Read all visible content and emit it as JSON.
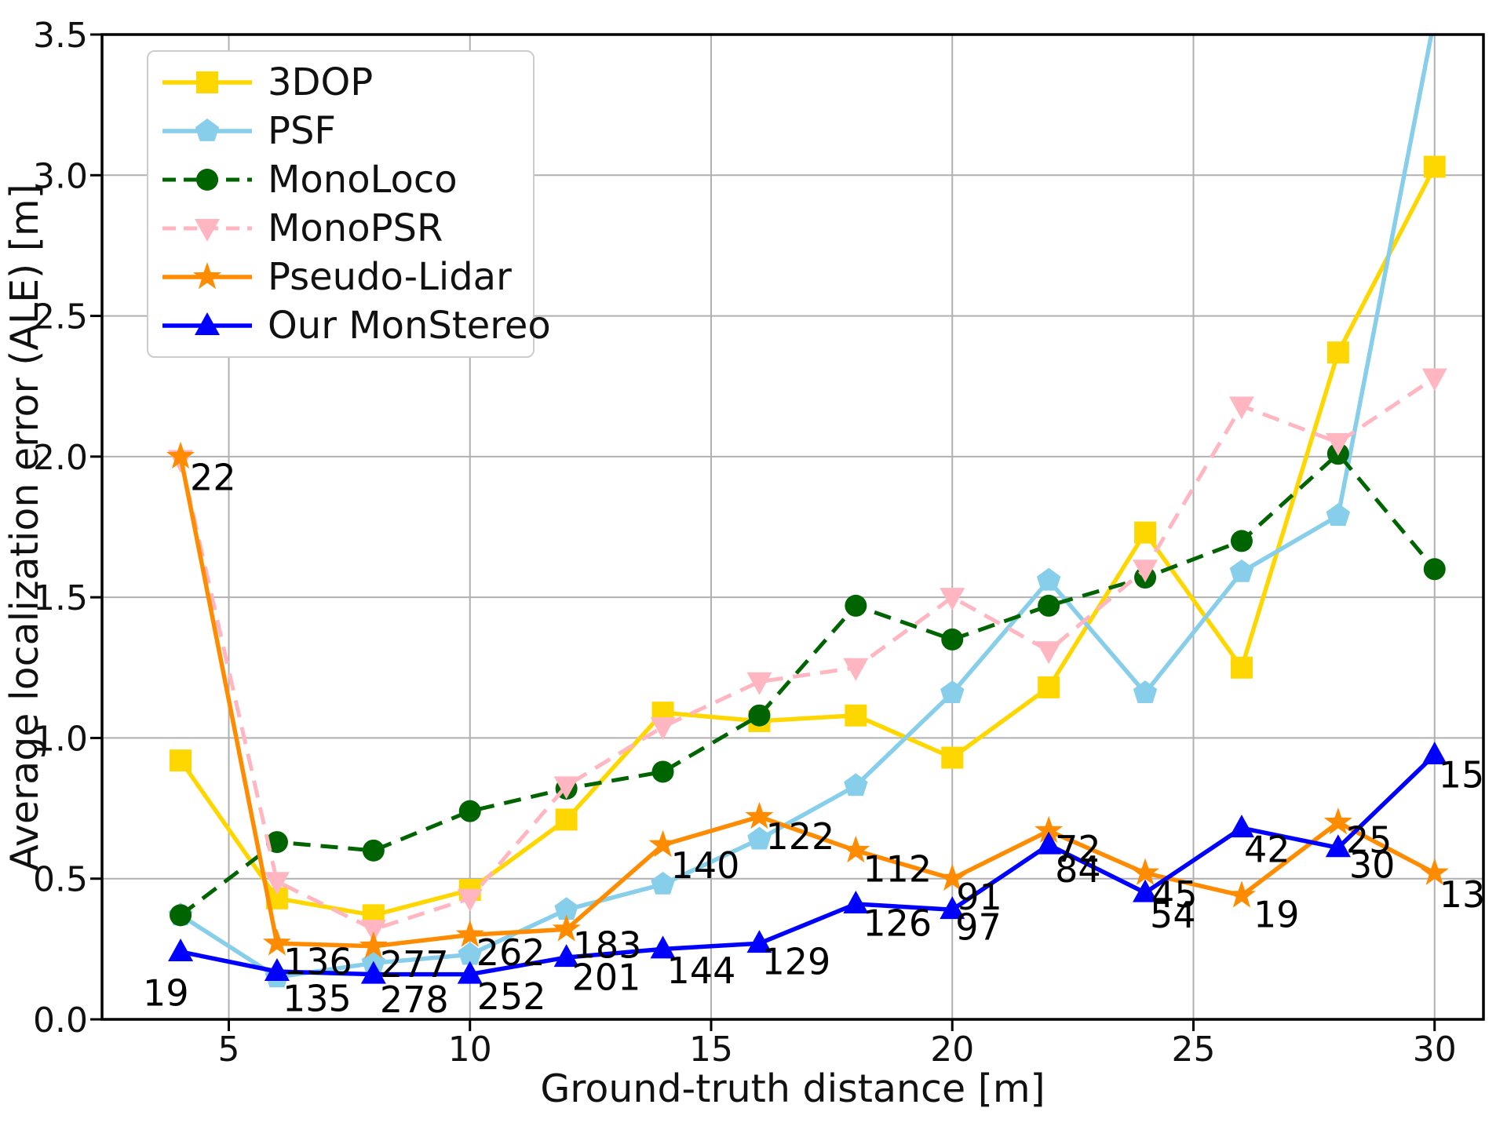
{
  "figure": {
    "xlabel": "Ground-truth distance [m]",
    "ylabel": "Average localization error (ALE) [m]"
  },
  "chart_data": {
    "type": "line",
    "title": "",
    "xlabel": "Ground-truth distance [m]",
    "ylabel": "Average localization error (ALE) [m]",
    "xlim": [
      2.35,
      31.05
    ],
    "ylim": [
      0,
      3.5
    ],
    "xticks": [
      5,
      10,
      15,
      20,
      25,
      30
    ],
    "yticks": [
      "0.0",
      "0.5",
      "1.0",
      "1.5",
      "2.0",
      "2.5",
      "3.0",
      "3.5"
    ],
    "grid": true,
    "legend_position": "upper left",
    "x": [
      4,
      6,
      8,
      10,
      12,
      14,
      16,
      18,
      20,
      22,
      24,
      26,
      28,
      30
    ],
    "series": [
      {
        "name": "3DOP",
        "color": "#FFD700",
        "marker": "square",
        "dash": "solid",
        "values": [
          0.92,
          0.43,
          0.37,
          0.46,
          0.71,
          1.09,
          1.06,
          1.08,
          0.93,
          1.18,
          1.73,
          1.25,
          2.37,
          3.03
        ]
      },
      {
        "name": "PSF",
        "color": "#87CEEB",
        "marker": "pentagon",
        "dash": "solid",
        "values": [
          0.37,
          0.15,
          0.2,
          0.23,
          0.39,
          0.48,
          0.64,
          0.83,
          1.16,
          1.56,
          1.16,
          1.59,
          1.79,
          3.56
        ],
        "note": "last point rises above the 3.5 axis limit and is clipped"
      },
      {
        "name": "MonoLoco",
        "color": "#006400",
        "marker": "circle",
        "dash": "dashed",
        "values": [
          0.37,
          0.63,
          0.6,
          0.74,
          0.82,
          0.88,
          1.08,
          1.47,
          1.35,
          1.47,
          1.57,
          1.7,
          2.01,
          1.6
        ]
      },
      {
        "name": "MonoPSR",
        "color": "#FFB6C1",
        "marker": "triangle-down",
        "dash": "dashed",
        "values": [
          1.99,
          0.49,
          0.32,
          0.43,
          0.83,
          1.04,
          1.2,
          1.25,
          1.5,
          1.31,
          1.6,
          2.18,
          2.05,
          2.28
        ]
      },
      {
        "name": "Pseudo-Lidar",
        "color": "#FF8C00",
        "marker": "star",
        "dash": "solid",
        "values": [
          2.0,
          0.27,
          0.26,
          0.3,
          0.32,
          0.62,
          0.72,
          0.6,
          0.5,
          0.67,
          0.52,
          0.44,
          0.7,
          0.52
        ],
        "labels": [
          22,
          136,
          277,
          262,
          183,
          140,
          122,
          112,
          91,
          72,
          45,
          19,
          25,
          13
        ]
      },
      {
        "name": "Our MonStereo",
        "color": "#0000FF",
        "marker": "triangle-up",
        "dash": "solid",
        "values": [
          0.24,
          0.17,
          0.16,
          0.16,
          0.22,
          0.25,
          0.27,
          0.41,
          0.39,
          0.62,
          0.45,
          0.68,
          0.61,
          0.94
        ],
        "labels": [
          19,
          135,
          278,
          252,
          201,
          144,
          129,
          126,
          97,
          84,
          54,
          42,
          30,
          15
        ]
      }
    ]
  }
}
